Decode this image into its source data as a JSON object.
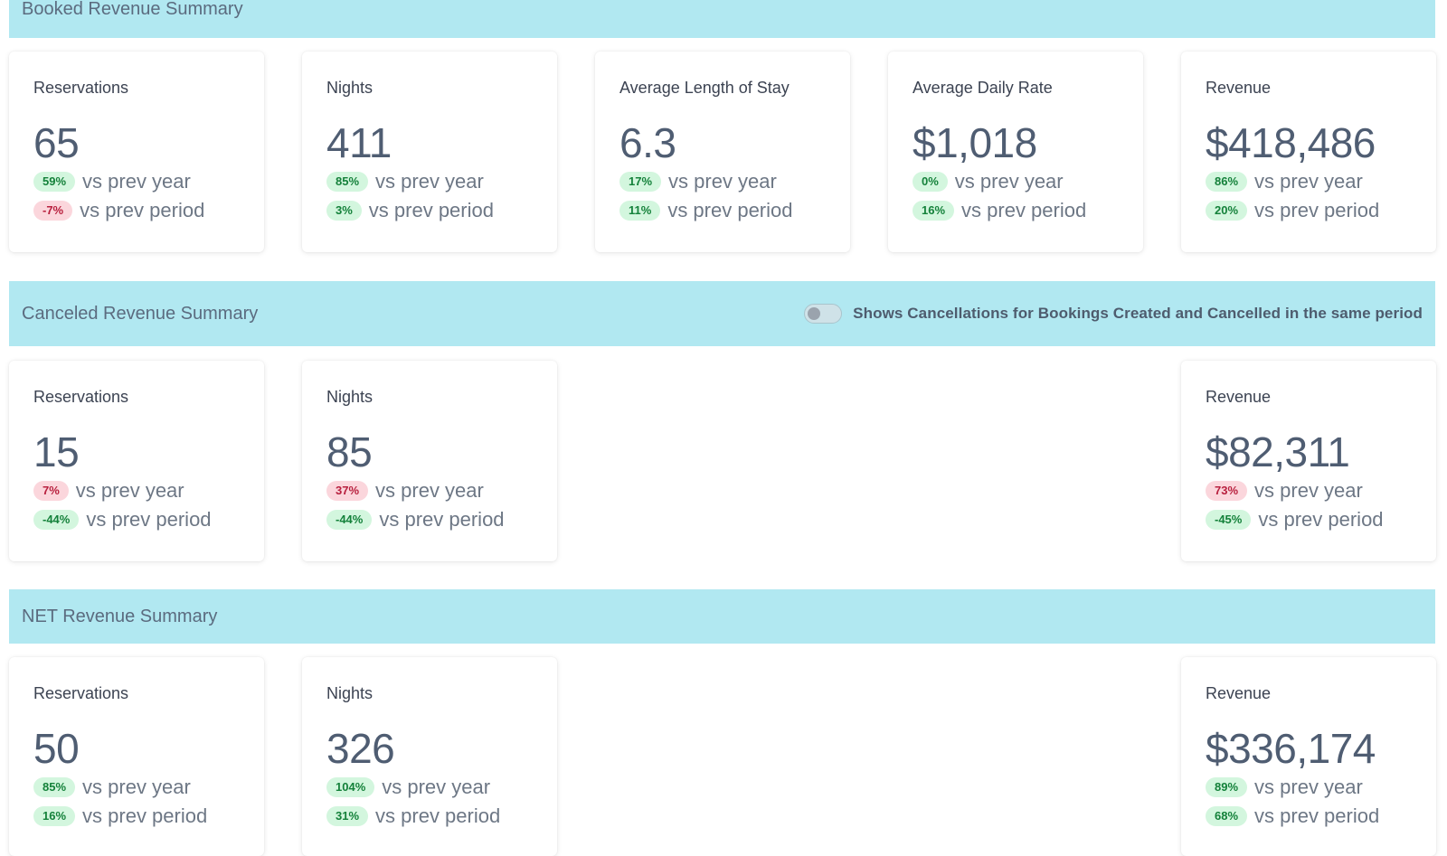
{
  "booked": {
    "title": "Booked Revenue Summary",
    "cards": [
      {
        "label": "Reservations",
        "value": "65",
        "yoy": "59%",
        "yoy_color": "green",
        "pop": "-7%",
        "pop_color": "red"
      },
      {
        "label": "Nights",
        "value": "411",
        "yoy": "85%",
        "yoy_color": "green",
        "pop": "3%",
        "pop_color": "green"
      },
      {
        "label": "Average Length of Stay",
        "value": "6.3",
        "yoy": "17%",
        "yoy_color": "green",
        "pop": "11%",
        "pop_color": "green"
      },
      {
        "label": "Average Daily Rate",
        "value": "$1,018",
        "yoy": "0%",
        "yoy_color": "green",
        "pop": "16%",
        "pop_color": "green"
      },
      {
        "label": "Revenue",
        "value": "$418,486",
        "yoy": "86%",
        "yoy_color": "green",
        "pop": "20%",
        "pop_color": "green"
      }
    ]
  },
  "canceled": {
    "title": "Canceled Revenue Summary",
    "toggle_label": "Shows Cancellations for Bookings Created and Cancelled in the same period",
    "cards": [
      {
        "label": "Reservations",
        "value": "15",
        "yoy": "7%",
        "yoy_color": "red",
        "pop": "-44%",
        "pop_color": "green"
      },
      {
        "label": "Nights",
        "value": "85",
        "yoy": "37%",
        "yoy_color": "red",
        "pop": "-44%",
        "pop_color": "green"
      },
      {
        "label": "Revenue",
        "value": "$82,311",
        "yoy": "73%",
        "yoy_color": "red",
        "pop": "-45%",
        "pop_color": "green"
      }
    ]
  },
  "net": {
    "title": "NET Revenue Summary",
    "cards": [
      {
        "label": "Reservations",
        "value": "50",
        "yoy": "85%",
        "yoy_color": "green",
        "pop": "16%",
        "pop_color": "green"
      },
      {
        "label": "Nights",
        "value": "326",
        "yoy": "104%",
        "yoy_color": "green",
        "pop": "31%",
        "pop_color": "green"
      },
      {
        "label": "Revenue",
        "value": "$336,174",
        "yoy": "89%",
        "yoy_color": "green",
        "pop": "68%",
        "pop_color": "green"
      }
    ]
  },
  "comparison": {
    "vs_prev_year": "vs prev year",
    "vs_prev_period": "vs prev period"
  },
  "colors": {
    "header_bg": "#b1e8f1",
    "positive_badge_bg": "#d3f6de",
    "negative_badge_bg": "#fbd6dc"
  }
}
